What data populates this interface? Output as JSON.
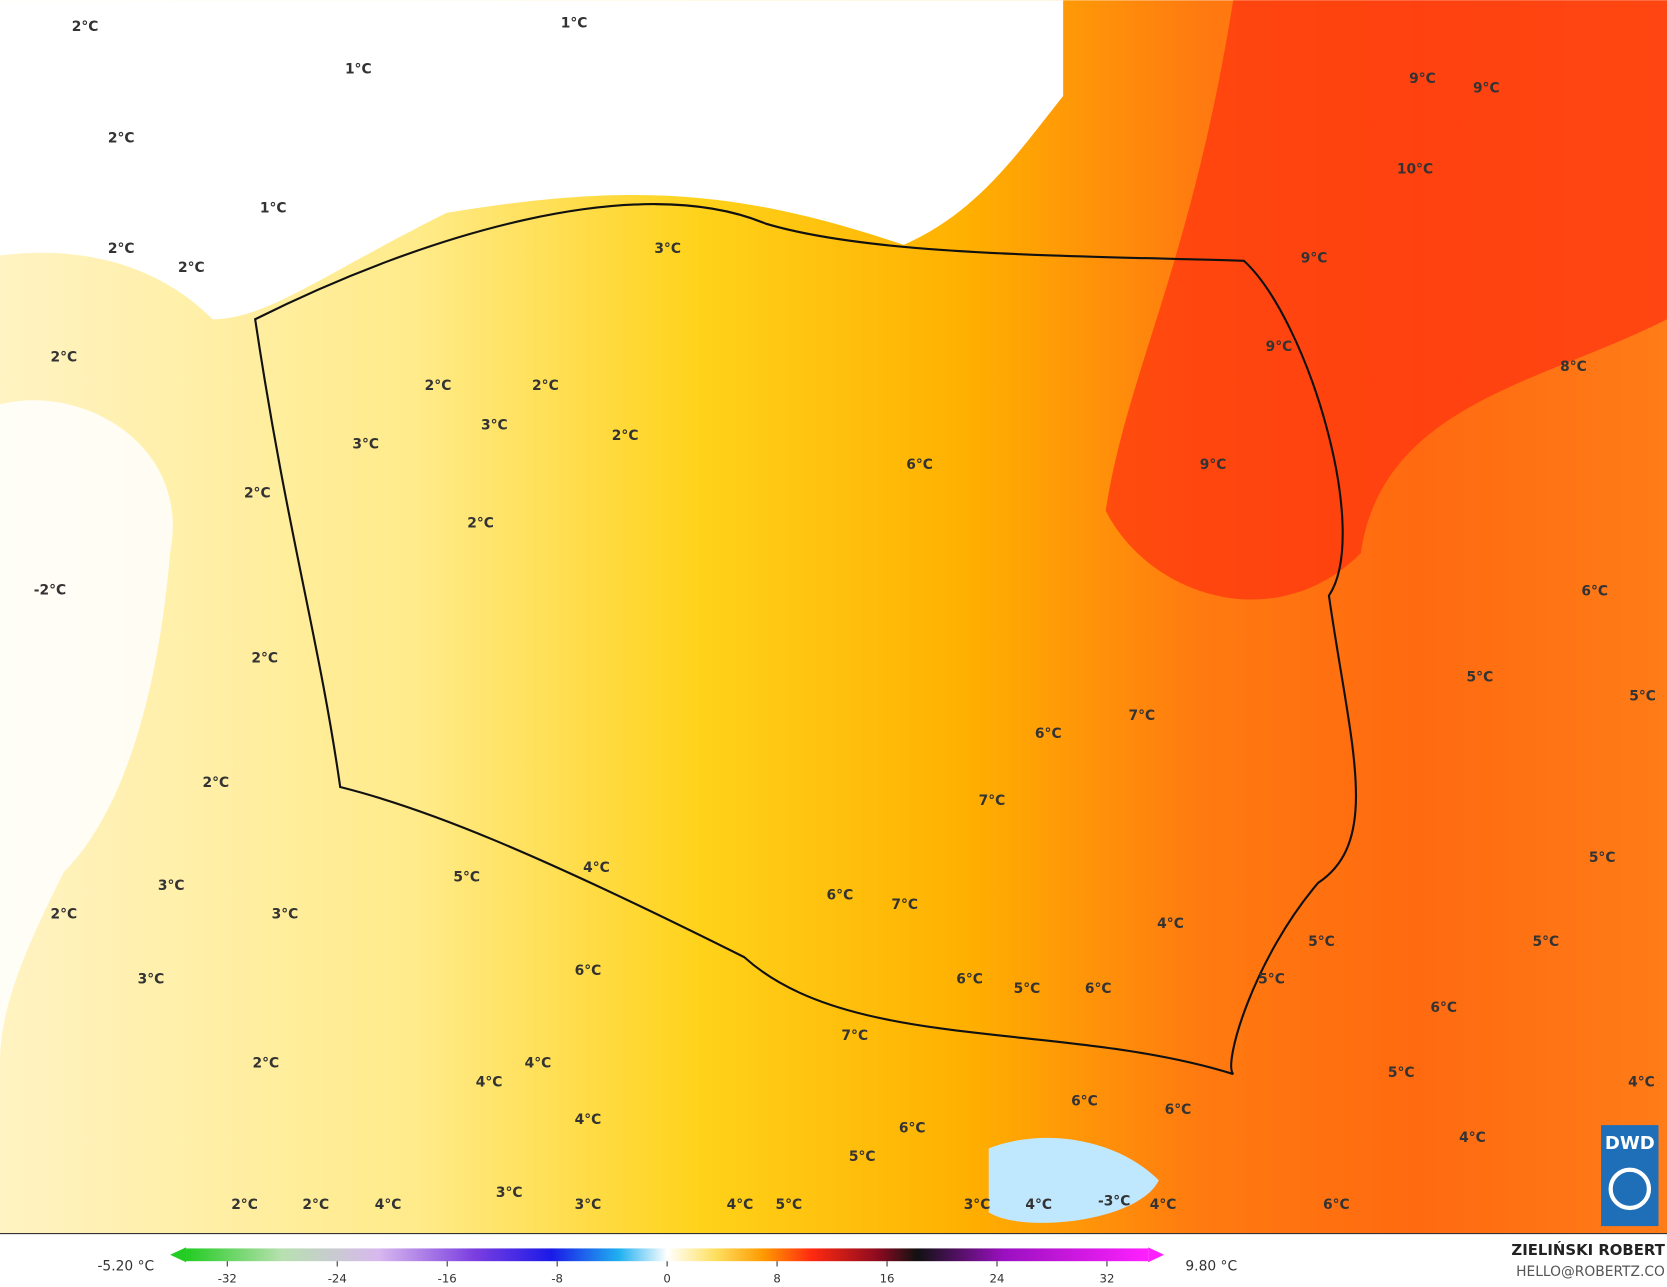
{
  "map": {
    "labels": [
      "2°C",
      "1°C",
      "1°C",
      "2°C",
      "9°C",
      "9°C",
      "10°C",
      "1°C",
      "3°C",
      "2°C",
      "2°C",
      "9°C",
      "2°C",
      "9°C",
      "8°C",
      "2°C",
      "2°C",
      "3°C",
      "3°C",
      "2°C",
      "6°C",
      "9°C",
      "2°C",
      "2°C",
      "-2°C",
      "6°C",
      "2°C",
      "5°C",
      "5°C",
      "7°C",
      "6°C",
      "2°C",
      "7°C",
      "5°C",
      "5°C",
      "4°C",
      "3°C",
      "6°C",
      "7°C",
      "3°C",
      "2°C",
      "4°C",
      "5°C",
      "5°C",
      "6°C",
      "3°C",
      "6°C",
      "5°C",
      "6°C",
      "5°C",
      "6°C",
      "7°C",
      "2°C",
      "4°C",
      "5°C",
      "4°C",
      "4°C",
      "6°C",
      "6°C",
      "4°C",
      "6°C",
      "4°C",
      "5°C",
      "3°C",
      "2°C",
      "2°C",
      "4°C",
      "3°C",
      "4°C",
      "5°C",
      "3°C",
      "4°C",
      "-3°C",
      "4°C",
      "6°C"
    ],
    "logo": "DWD"
  },
  "colorbar": {
    "lim": [
      -35,
      35
    ],
    "ticks": [
      -32,
      -24,
      -16,
      -8,
      0,
      8,
      16,
      24,
      32
    ],
    "min_label": "-5.20 °C",
    "max_label": "9.80 °C"
  },
  "footer": {
    "author": "ZIELIŃSKI ROBERT",
    "contact": "HELLO@ROBERTZ.CO"
  }
}
